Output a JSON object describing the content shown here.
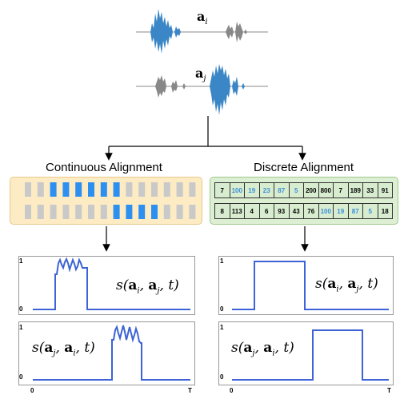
{
  "top": {
    "label_a_i": "i",
    "label_a_j": "j"
  },
  "left": {
    "title": "Continuous Alignment",
    "plot1_label": "s(a_i, a_j, t)",
    "plot2_label": "s(a_j, a_i, t)",
    "row1_pattern": [
      0,
      0,
      1,
      1,
      1,
      1,
      1,
      1,
      0,
      0,
      0,
      0,
      0,
      0
    ],
    "row2_pattern": [
      0,
      0,
      0,
      0,
      0,
      0,
      0,
      1,
      1,
      1,
      1,
      0,
      0,
      0
    ]
  },
  "right": {
    "title": "Discrete Alignment",
    "row1": [
      "7",
      "100",
      "19",
      "23",
      "87",
      "5",
      "200",
      "800",
      "7",
      "189",
      "33",
      "91"
    ],
    "row1_highlight": [
      false,
      true,
      true,
      true,
      true,
      true,
      false,
      false,
      false,
      false,
      false,
      false
    ],
    "row2": [
      "8",
      "113",
      "4",
      "6",
      "93",
      "43",
      "76",
      "100",
      "19",
      "87",
      "5",
      "18"
    ],
    "row2_highlight": [
      false,
      false,
      false,
      false,
      false,
      false,
      false,
      true,
      true,
      true,
      true,
      false
    ]
  },
  "axes": {
    "y_top": "1",
    "y_bottom": "0",
    "x_start": "0",
    "x_end": "T"
  },
  "colors": {
    "wave_blue": "#3b86c6",
    "wave_gray": "#808080",
    "bar_blue": "#2d8ff0",
    "bar_gray": "#c9c9c9",
    "line_blue": "#3d63d6",
    "highlight_text": "#3a8fd8"
  }
}
